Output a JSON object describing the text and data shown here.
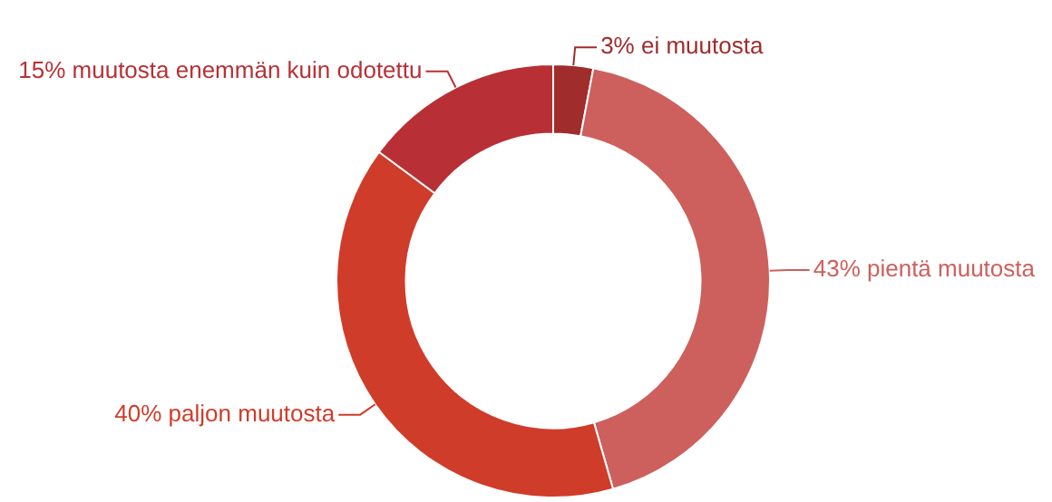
{
  "chart_data": {
    "type": "donut",
    "categories": [
      "ei muutosta",
      "pientä muutosta",
      "paljon muutosta",
      "muutosta enemmän kuin odotettu"
    ],
    "values": [
      3,
      43,
      40,
      15
    ],
    "value_labels": [
      "3%",
      "43%",
      "40%",
      "15%"
    ],
    "colors": [
      "#a02c2c",
      "#cd605d",
      "#d03c2a",
      "#b83035"
    ],
    "legend": false
  }
}
